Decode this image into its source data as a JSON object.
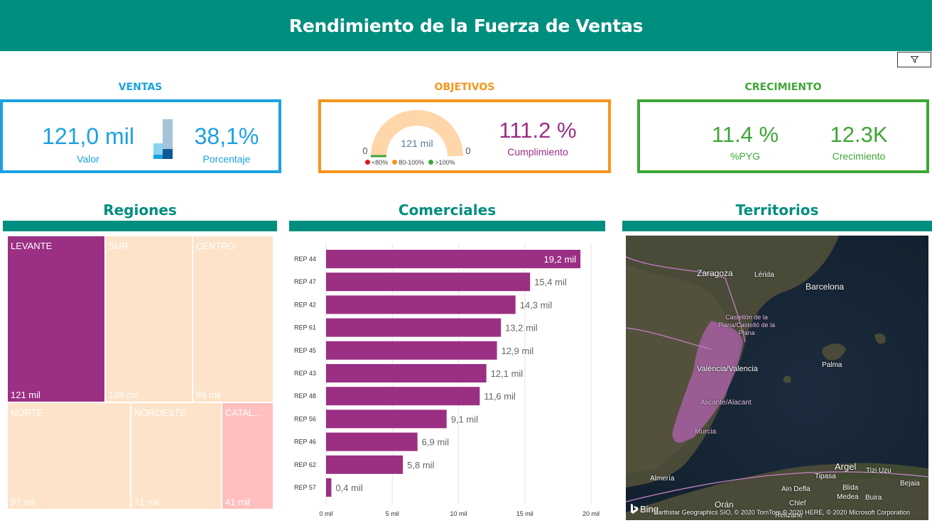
{
  "header": {
    "title": "Rendimiento de la Fuerza de Ventas"
  },
  "filter": {
    "icon": "filter-icon"
  },
  "ventas": {
    "title": "VENTAS",
    "valor": "121,0 mil",
    "valor_label": "Valor",
    "porcentaje": "38,1%",
    "porcentaje_label": "Porcentaje",
    "color": "#1ba1e2"
  },
  "objetivos": {
    "title": "OBJETIVOS",
    "gauge_value": "121 mil",
    "gauge_min": "0",
    "gauge_max": "0",
    "cumplimiento": "111.2 %",
    "cumplimiento_label": "Cumplimiento",
    "legend": [
      "<80%",
      "80-100%",
      ">100%"
    ],
    "legend_colors": [
      "#e81123",
      "#f7941d",
      "#3ea636"
    ],
    "color": "#f7941d"
  },
  "crecimiento": {
    "title": "CRECIMIENTO",
    "pyg": "11.4 %",
    "pyg_label": "%PYG",
    "crec": "12.3K",
    "crec_label": "Crecimiento",
    "color": "#3ea636"
  },
  "regiones": {
    "title": "Regiones",
    "tiles": [
      {
        "name": "LEVANTE",
        "value": "121 mil"
      },
      {
        "name": "SUR",
        "value": "108 mil"
      },
      {
        "name": "CENTRO",
        "value": "99 mil"
      },
      {
        "name": "NORTE",
        "value": "97 mil"
      },
      {
        "name": "NOROESTE",
        "value": "71 mil"
      },
      {
        "name": "CATAL...",
        "value": "41 mil"
      }
    ]
  },
  "comerciales": {
    "title": "Comerciales"
  },
  "territorios": {
    "title": "Territorios",
    "cities": [
      "Zaragoza",
      "Lérida",
      "Barcelona",
      "Castellón de la Plana/Castelló de la Plana",
      "Palma",
      "València/Valencia",
      "Alicante/Alacant",
      "Murcia",
      "Almería",
      "Argel",
      "Tizi Uzu",
      "Tipasa",
      "Blida",
      "Bejaia",
      "Ain Defla",
      "Medea",
      "Buira",
      "Orán",
      "Chlef",
      "Relizane"
    ],
    "attribution": "Earthstar Geographics SIO, © 2020 TomTom © 2020 HERE, © 2020 Microsoft Corporation",
    "brand": "Bing"
  },
  "chart_data": {
    "type": "bar",
    "orientation": "horizontal",
    "categories": [
      "REP 44",
      "REP 47",
      "REP 42",
      "REP 61",
      "REP 45",
      "REP 43",
      "REP 48",
      "REP 56",
      "REP 46",
      "REP 62",
      "REP 57"
    ],
    "values": [
      19.2,
      15.4,
      14.3,
      13.2,
      12.9,
      12.1,
      11.6,
      9.1,
      6.9,
      5.8,
      0.4
    ],
    "data_labels": [
      "19,2 mil",
      "15,4 mil",
      "14,3 mil",
      "13,2 mil",
      "12,9 mil",
      "12,1 mil",
      "11,6 mil",
      "9,1 mil",
      "6,9 mil",
      "5,8 mil",
      "0,4 mil"
    ],
    "xticks": [
      "0 mil",
      "5 mil",
      "10 mil",
      "15 mil",
      "20 mil"
    ],
    "xlim": [
      0,
      20
    ],
    "grid": true,
    "color": "#9b2f83"
  }
}
